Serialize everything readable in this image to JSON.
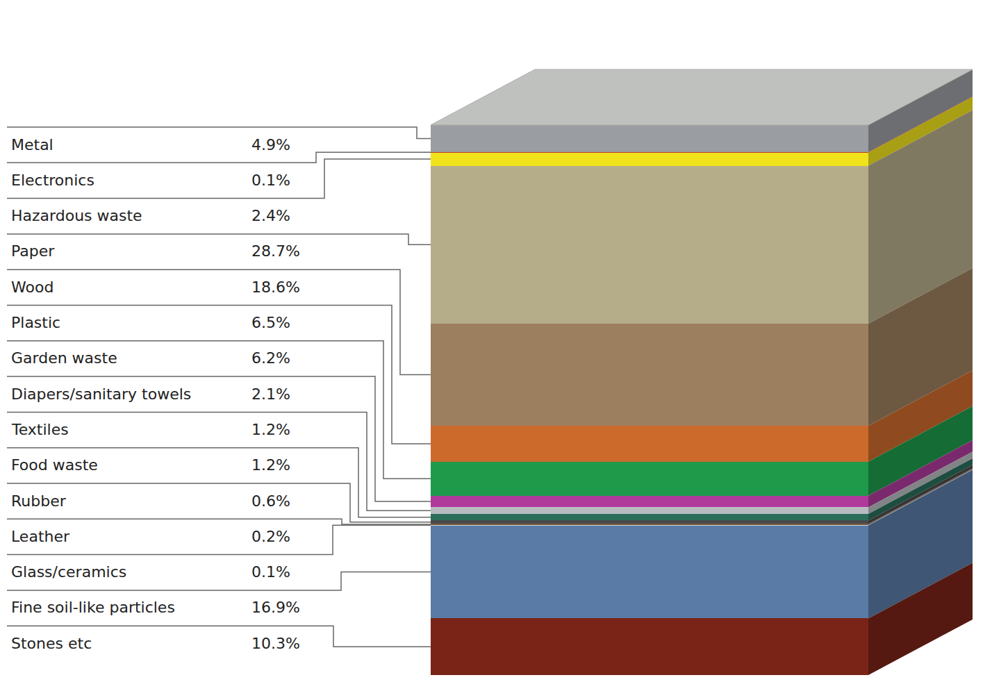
{
  "chart_data": {
    "type": "bar",
    "stacked": true,
    "tick_labels": false,
    "categories": [
      null
    ],
    "ylim": [
      0,
      100
    ],
    "series": [
      {
        "name": "Metal",
        "color": "#9a9da1",
        "values": [
          4.9
        ],
        "value_labels": [
          "4.9%"
        ]
      },
      {
        "name": "Electronics",
        "color": "#c0392b",
        "values": [
          0.1
        ],
        "value_labels": [
          "0.1%"
        ]
      },
      {
        "name": "Hazardous waste",
        "color": "#f0e31c",
        "values": [
          2.4
        ],
        "value_labels": [
          "2.4%"
        ]
      },
      {
        "name": "Paper",
        "color": "#b5ad8a",
        "values": [
          28.7
        ],
        "value_labels": [
          "28.7%"
        ]
      },
      {
        "name": "Wood",
        "color": "#9c7f5e",
        "values": [
          18.6
        ],
        "value_labels": [
          "18.6%"
        ]
      },
      {
        "name": "Plastic",
        "color": "#cc6a2c",
        "values": [
          6.5
        ],
        "value_labels": [
          "6.5%"
        ]
      },
      {
        "name": "Garden waste",
        "color": "#1e9a4a",
        "values": [
          6.2
        ],
        "value_labels": [
          "6.2%"
        ]
      },
      {
        "name": "Diapers/sanitary towels",
        "color": "#b03a9c",
        "values": [
          2.1
        ],
        "value_labels": [
          "2.1%"
        ]
      },
      {
        "name": "Textiles",
        "color": "#b8bcc0",
        "values": [
          1.2
        ],
        "value_labels": [
          "1.2%"
        ]
      },
      {
        "name": "Food waste",
        "color": "#2a6e5a",
        "values": [
          1.2
        ],
        "value_labels": [
          "1.2%"
        ]
      },
      {
        "name": "Rubber",
        "color": "#4a4a4a",
        "values": [
          0.6
        ],
        "value_labels": [
          "0.6%"
        ]
      },
      {
        "name": "Leather",
        "color": "#7a5a40",
        "values": [
          0.2
        ],
        "value_labels": [
          "0.2%"
        ]
      },
      {
        "name": "Glass/ceramics",
        "color": "#c8d4dc",
        "values": [
          0.1
        ],
        "value_labels": [
          "0.1%"
        ]
      },
      {
        "name": "Fine soil-like particles",
        "color": "#5a7ba6",
        "values": [
          16.9
        ],
        "value_labels": [
          "16.9%"
        ]
      },
      {
        "name": "Stones etc",
        "color": "#7a2418",
        "values": [
          10.3
        ],
        "value_labels": [
          "10.3%"
        ]
      }
    ]
  }
}
